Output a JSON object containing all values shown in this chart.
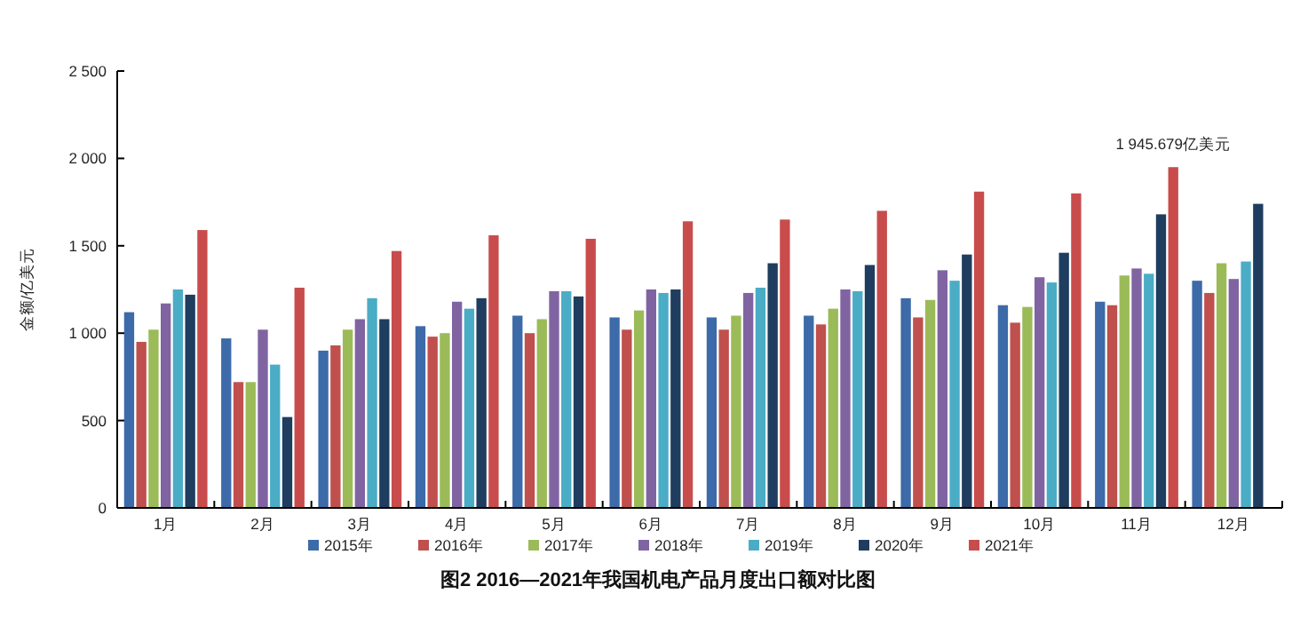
{
  "chart_data": {
    "type": "bar",
    "title": "图2  2016—2021年我国机电产品月度出口额对比图",
    "ylabel": "金额/亿美元",
    "categories": [
      "1月",
      "2月",
      "3月",
      "4月",
      "5月",
      "6月",
      "7月",
      "8月",
      "9月",
      "10月",
      "11月",
      "12月"
    ],
    "series": [
      {
        "name": "2015年",
        "color": "#3d6aa8",
        "values": [
          1120,
          970,
          900,
          1040,
          1100,
          1090,
          1090,
          1100,
          1200,
          1160,
          1180,
          1300
        ]
      },
      {
        "name": "2016年",
        "color": "#c0504d",
        "values": [
          950,
          720,
          930,
          980,
          1000,
          1020,
          1020,
          1050,
          1090,
          1060,
          1160,
          1230
        ]
      },
      {
        "name": "2017年",
        "color": "#9bbb59",
        "values": [
          1020,
          720,
          1020,
          1000,
          1080,
          1130,
          1100,
          1140,
          1190,
          1150,
          1330,
          1400
        ]
      },
      {
        "name": "2018年",
        "color": "#8064a2",
        "values": [
          1170,
          1020,
          1080,
          1180,
          1240,
          1250,
          1230,
          1250,
          1360,
          1320,
          1370,
          1310
        ]
      },
      {
        "name": "2019年",
        "color": "#4bacc6",
        "values": [
          1250,
          820,
          1200,
          1140,
          1240,
          1230,
          1260,
          1240,
          1300,
          1290,
          1340,
          1410
        ]
      },
      {
        "name": "2020年",
        "color": "#1f3d5f",
        "values": [
          1220,
          520,
          1080,
          1200,
          1210,
          1250,
          1400,
          1390,
          1450,
          1460,
          1680,
          1740
        ]
      },
      {
        "name": "2021年",
        "color": "#c94c4c",
        "values": [
          1590,
          1260,
          1470,
          1560,
          1540,
          1640,
          1650,
          1700,
          1810,
          1800,
          1950,
          null
        ]
      }
    ],
    "ylim": [
      0,
      2500
    ],
    "yticks": [
      0,
      {
        "value": 500,
        "label": "500"
      },
      {
        "value": 1000,
        "label": "1 000"
      },
      {
        "value": 1500,
        "label": "1 500"
      },
      {
        "value": 2000,
        "label": "2 000"
      },
      {
        "value": 2500,
        "label": "2 500"
      }
    ],
    "legend": "bottom",
    "grid": false,
    "annotations": [
      "1 945.679亿美元"
    ]
  }
}
